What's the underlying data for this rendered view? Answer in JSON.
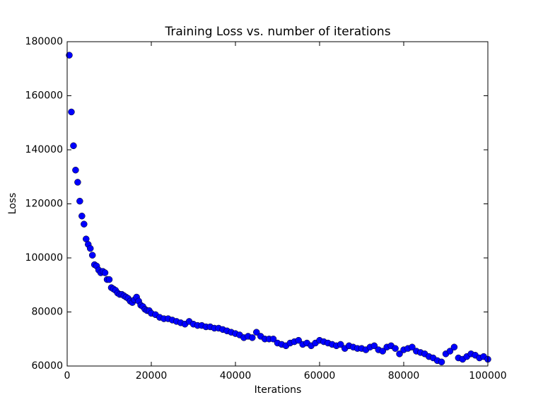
{
  "chart_data": {
    "type": "scatter",
    "title": "Training Loss vs. number of iterations",
    "x_label": "Iterations",
    "y_label": "Loss",
    "color": "#0000ff",
    "x": [
      500,
      1000,
      1500,
      2000,
      2500,
      3000,
      3500,
      4000,
      4500,
      5000,
      5500,
      6000,
      6500,
      7000,
      7500,
      8000,
      8500,
      9000,
      9500,
      10000,
      10500,
      11000,
      11500,
      12000,
      12500,
      13000,
      13500,
      14000,
      14500,
      15000,
      15500,
      16000,
      16500,
      17000,
      17500,
      18000,
      18500,
      19000,
      19500,
      20000,
      21000,
      22000,
      23000,
      24000,
      25000,
      26000,
      27000,
      28000,
      29000,
      30000,
      31000,
      32000,
      33000,
      34000,
      35000,
      36000,
      37000,
      38000,
      39000,
      40000,
      41000,
      42000,
      43000,
      44000,
      45000,
      46000,
      47000,
      48000,
      49000,
      50000,
      51000,
      52000,
      53000,
      54000,
      55000,
      56000,
      57000,
      58000,
      59000,
      60000,
      61000,
      62000,
      63000,
      64000,
      65000,
      66000,
      67000,
      68000,
      69000,
      70000,
      71000,
      72000,
      73000,
      74000,
      75000,
      76000,
      77000,
      78000,
      79000,
      80000,
      81000,
      82000,
      83000,
      84000,
      85000,
      86000,
      87000,
      88000,
      89000,
      90000,
      91000,
      92000,
      93000,
      94000,
      95000,
      96000,
      97000,
      98000,
      99000,
      100000
    ],
    "values": [
      175000,
      154000,
      141500,
      132500,
      128000,
      121000,
      115500,
      112500,
      107000,
      105000,
      103500,
      101000,
      97500,
      97000,
      95500,
      94500,
      95000,
      94500,
      92000,
      92000,
      89000,
      88500,
      88000,
      87000,
      86500,
      86500,
      86000,
      85500,
      85000,
      84000,
      83500,
      84500,
      85500,
      84000,
      82500,
      82000,
      81000,
      80500,
      80500,
      79500,
      79000,
      78000,
      77500,
      77500,
      77000,
      76500,
      76000,
      75500,
      76500,
      75500,
      75000,
      75000,
      74500,
      74500,
      74000,
      74000,
      73500,
      73000,
      72500,
      72000,
      71500,
      70500,
      71000,
      70500,
      72500,
      71000,
      70000,
      70000,
      70000,
      68500,
      68000,
      67500,
      68500,
      69000,
      69500,
      68000,
      68500,
      67500,
      68500,
      69500,
      69000,
      68500,
      68000,
      67500,
      68000,
      66500,
      67500,
      67000,
      66500,
      66500,
      66000,
      67000,
      67500,
      66000,
      65500,
      67000,
      67500,
      66500,
      64500,
      66000,
      66500,
      67000,
      65500,
      65000,
      64500,
      63500,
      63000,
      62000,
      61500,
      64500,
      65500,
      67000,
      63000,
      62500,
      63500,
      64500,
      64000,
      63000,
      63500,
      62500
    ],
    "xlim": [
      0,
      100000
    ],
    "xticks": [
      0,
      20000,
      40000,
      60000,
      80000,
      100000
    ],
    "ylim": [
      60000,
      180000
    ],
    "yticks": [
      60000,
      80000,
      100000,
      120000,
      140000,
      160000,
      180000
    ]
  }
}
